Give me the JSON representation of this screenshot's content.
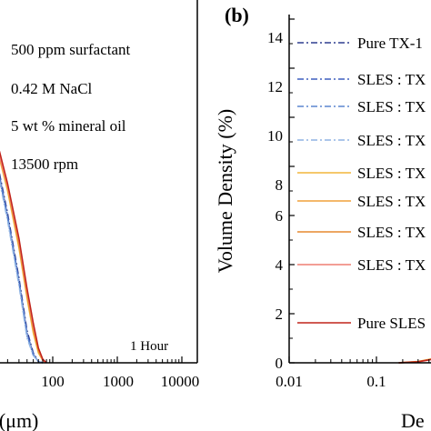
{
  "chart_data": [
    {
      "panel": "a",
      "type": "line",
      "xscale": "log",
      "xlim": [
        10,
        10000
      ],
      "ylim": [
        0,
        14
      ],
      "xlabel": "r (μm)",
      "x_tick_labels": [
        "100",
        "1000",
        "10000"
      ],
      "x_ticks": [
        100,
        1000,
        10000
      ],
      "annotations": [
        "500 ppm surfactant",
        "0.42 M NaCl",
        "5 wt % mineral oil",
        "13500 rpm"
      ],
      "time_label": "1 Hour",
      "series": [
        {
          "style": "dashdot",
          "color": "#2e3f8f",
          "x": [
            10,
            15,
            20,
            30,
            40,
            50,
            60,
            70
          ],
          "y": [
            8.6,
            7.6,
            6.0,
            3.4,
            1.3,
            0.4,
            0.05,
            0
          ]
        },
        {
          "style": "dashdot",
          "color": "#3f5fbf",
          "x": [
            10,
            15,
            20,
            30,
            40,
            50,
            60,
            70
          ],
          "y": [
            8.5,
            7.5,
            5.9,
            3.3,
            1.2,
            0.35,
            0.05,
            0
          ]
        },
        {
          "style": "dashdot",
          "color": "#5b86cf",
          "x": [
            10,
            15,
            20,
            30,
            40,
            50,
            60,
            70
          ],
          "y": [
            8.4,
            7.4,
            5.8,
            3.2,
            1.1,
            0.3,
            0.05,
            0
          ]
        },
        {
          "style": "dashdot",
          "color": "#8fb4e3",
          "x": [
            10,
            15,
            20,
            30,
            40,
            50,
            60,
            70
          ],
          "y": [
            8.3,
            7.3,
            5.7,
            3.1,
            1.0,
            0.3,
            0.05,
            0
          ]
        },
        {
          "style": "solid",
          "color": "#f2b53a",
          "x": [
            10,
            15,
            20,
            30,
            40,
            50,
            60,
            70,
            80
          ],
          "y": [
            9.0,
            8.2,
            6.9,
            4.6,
            2.6,
            1.2,
            0.4,
            0.1,
            0
          ]
        },
        {
          "style": "solid",
          "color": "#f0a13a",
          "x": [
            10,
            15,
            20,
            30,
            40,
            50,
            60,
            70,
            80
          ],
          "y": [
            9.1,
            8.3,
            7.0,
            4.7,
            2.7,
            1.3,
            0.5,
            0.1,
            0
          ]
        },
        {
          "style": "solid",
          "color": "#e6892e",
          "x": [
            10,
            15,
            20,
            30,
            40,
            50,
            60,
            70,
            80
          ],
          "y": [
            9.2,
            8.4,
            7.1,
            4.8,
            2.8,
            1.4,
            0.5,
            0.1,
            0
          ]
        },
        {
          "style": "solid",
          "color": "#ef7f72",
          "x": [
            10,
            15,
            20,
            30,
            40,
            50,
            60,
            70,
            80
          ],
          "y": [
            9.1,
            8.3,
            7.1,
            4.9,
            2.9,
            1.5,
            0.6,
            0.1,
            0
          ]
        },
        {
          "style": "solid",
          "color": "#c0231a",
          "x": [
            10,
            15,
            20,
            30,
            40,
            50,
            60,
            70,
            80
          ],
          "y": [
            9.3,
            8.5,
            7.2,
            5.0,
            3.0,
            1.6,
            0.6,
            0.15,
            0
          ]
        }
      ]
    },
    {
      "panel": "b",
      "type": "line",
      "xscale": "log",
      "xlim": [
        0.01,
        5
      ],
      "ylim": [
        0,
        15
      ],
      "ylabel": "Volume Density (%)",
      "xlabel_visible": "De",
      "x_tick_labels": [
        "0.01",
        "0.1"
      ],
      "x_ticks": [
        0.01,
        0.1
      ],
      "y_tick_labels": [
        "0",
        "2",
        "4",
        "6",
        "8",
        "10",
        "12",
        "14"
      ],
      "y_ticks": [
        0,
        2,
        4,
        6,
        8,
        10,
        12,
        14
      ],
      "legend_position": "top-left",
      "legend": [
        {
          "label": "Pure TX-1",
          "style": "dashdot",
          "color": "#2e3f8f"
        },
        {
          "label": "SLES : TX",
          "style": "dashdot",
          "color": "#3f5fbf"
        },
        {
          "label": "SLES : TX",
          "style": "dashdot",
          "color": "#5b86cf"
        },
        {
          "label": "SLES : TX",
          "style": "dashdot",
          "color": "#8fb4e3"
        },
        {
          "label": "SLES : TX",
          "style": "solid",
          "color": "#f2b53a"
        },
        {
          "label": "SLES : TX",
          "style": "solid",
          "color": "#f0a13a"
        },
        {
          "label": "SLES : TX",
          "style": "solid",
          "color": "#e6892e"
        },
        {
          "label": "SLES : TX",
          "style": "solid",
          "color": "#ef7f72"
        },
        {
          "label": "Pure SLES",
          "style": "solid",
          "color": "#c0231a"
        }
      ],
      "series": [
        {
          "style": "solid",
          "color": "#f2b53a",
          "x": [
            0.18,
            0.3,
            0.5,
            0.8,
            1.5,
            5
          ],
          "y": [
            0,
            0.05,
            0.2,
            0.35,
            0.42,
            0.45
          ]
        },
        {
          "style": "solid",
          "color": "#c0231a",
          "x": [
            0.18,
            0.3,
            0.5,
            0.8,
            1.5,
            5
          ],
          "y": [
            0,
            0.04,
            0.18,
            0.32,
            0.4,
            0.42
          ]
        }
      ]
    }
  ],
  "panel_b_label": "(b)",
  "panel_a": {
    "annotations": [
      "500 ppm surfactant",
      "0.42 M NaCl",
      "5 wt % mineral oil",
      "13500 rpm"
    ],
    "time_label": "1 Hour",
    "x_tick_labels": [
      "100",
      "1000",
      "10000"
    ],
    "xlabel": "r (μm)"
  },
  "panel_b": {
    "label": "(b)",
    "ylabel": "Volume Density (%)",
    "x_tick_labels": [
      "0.01",
      "0.1"
    ],
    "xlabel_visible": "De",
    "y_tick_labels": [
      "0",
      "2",
      "4",
      "6",
      "8",
      "10",
      "12",
      "14"
    ],
    "legend_labels": [
      "Pure TX-1",
      "SLES : TX",
      "SLES : TX",
      "SLES : TX",
      "SLES : TX",
      "SLES : TX",
      "SLES : TX",
      "SLES : TX",
      "Pure SLES"
    ]
  }
}
